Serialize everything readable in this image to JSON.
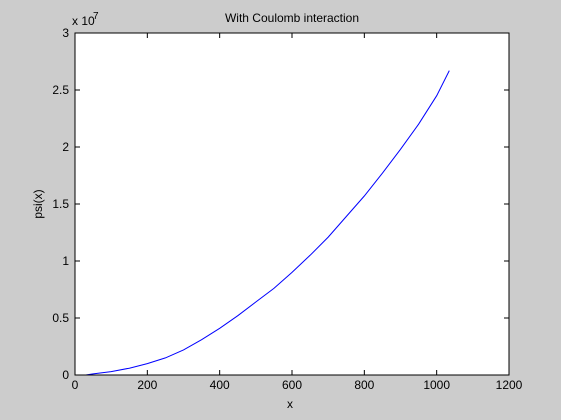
{
  "chart_data": {
    "type": "line",
    "title": "With Coulomb interaction",
    "xlabel": "x",
    "ylabel": "psi(x)",
    "xlim": [
      0,
      1200
    ],
    "ylim": [
      0,
      3
    ],
    "y_multiplier_base": "x 10",
    "y_multiplier_exponent": "7",
    "x_ticks": [
      "0",
      "200",
      "400",
      "600",
      "800",
      "1000",
      "1200"
    ],
    "y_ticks": [
      "0",
      "0.5",
      "1",
      "1.5",
      "2",
      "2.5",
      "3"
    ],
    "grid": false,
    "series": [
      {
        "color": "#0000ff",
        "x": [
          30,
          50,
          100,
          150,
          200,
          250,
          300,
          350,
          400,
          450,
          500,
          550,
          600,
          650,
          700,
          750,
          800,
          850,
          900,
          950,
          1000,
          1035
        ],
        "y": [
          0.0,
          0.01,
          0.03,
          0.06,
          0.1,
          0.15,
          0.22,
          0.31,
          0.41,
          0.52,
          0.64,
          0.76,
          0.9,
          1.05,
          1.21,
          1.39,
          1.57,
          1.77,
          1.98,
          2.2,
          2.45,
          2.67
        ]
      }
    ]
  }
}
